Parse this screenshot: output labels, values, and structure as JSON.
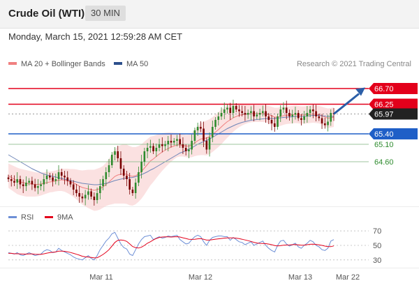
{
  "header": {
    "title": "Crude Oil (WTI)",
    "timeframe": "30 MIN"
  },
  "timestamp": "Monday, March 15, 2021 12:59:28 AM CET",
  "legend": {
    "ma20": {
      "label": "MA 20 + Bollinger Bands",
      "color": "#f08080"
    },
    "ma50": {
      "label": "MA 50",
      "color": "#2c4f8c"
    },
    "copyright": "Research © 2021 Trading Central"
  },
  "colors": {
    "resistance": "#e3001b",
    "support": "#1f5fc7",
    "target": "#2e8b2e",
    "current": "#222222",
    "bull": "#2e8b2e",
    "bear": "#7a0000",
    "band": "#f9d4d4",
    "arrow": "#2b5ea7",
    "rsi": "#6d8fd6",
    "rsi_ma": "#e3001b"
  },
  "chart_data": [
    {
      "type": "candlestick",
      "instrument": "Crude Oil (WTI)",
      "interval": "30 MIN",
      "ylim": [
        63.4,
        67.0
      ],
      "x_ticks": [
        "Mar 11",
        "Mar 12",
        "Mar 13",
        "Mar 22"
      ],
      "price_levels": [
        {
          "value": 66.7,
          "label": "66.70",
          "kind": "resistance"
        },
        {
          "value": 66.25,
          "label": "66.25",
          "kind": "resistance"
        },
        {
          "value": 65.97,
          "label": "65.97",
          "kind": "current"
        },
        {
          "value": 65.4,
          "label": "65.40",
          "kind": "support"
        },
        {
          "value": 65.1,
          "label": "65.10",
          "kind": "target"
        },
        {
          "value": 64.6,
          "label": "64.60",
          "kind": "target"
        }
      ],
      "close": [
        64.1,
        64.05,
        64.0,
        64.1,
        63.95,
        63.9,
        64.0,
        64.05,
        63.95,
        63.85,
        63.9,
        63.95,
        64.1,
        64.2,
        64.15,
        64.05,
        64.1,
        64.3,
        64.2,
        64.15,
        64.05,
        63.95,
        63.8,
        63.7,
        63.6,
        63.55,
        63.65,
        63.75,
        63.6,
        63.5,
        63.7,
        63.9,
        64.1,
        64.3,
        64.5,
        64.8,
        64.9,
        64.7,
        64.4,
        64.2,
        64.1,
        63.8,
        63.7,
        64.0,
        64.3,
        64.6,
        64.9,
        65.0,
        65.05,
        64.9,
        65.0,
        65.1,
        65.05,
        65.1,
        65.2,
        65.15,
        65.2,
        65.25,
        65.1,
        65.0,
        64.9,
        64.95,
        65.2,
        65.5,
        65.6,
        65.55,
        65.2,
        64.95,
        65.3,
        65.6,
        65.8,
        65.9,
        66.0,
        66.1,
        66.15,
        66.0,
        66.2,
        66.1,
        66.05,
        66.0,
        65.95,
        66.0,
        66.05,
        65.9,
        65.95,
        66.0,
        66.05,
        65.9,
        65.8,
        65.7,
        65.6,
        65.9,
        66.1,
        66.15,
        66.0,
        65.9,
        65.95,
        66.0,
        65.85,
        65.8,
        65.9,
        66.0,
        66.1,
        66.05,
        65.9,
        65.85,
        65.7,
        65.65,
        65.75,
        66.0,
        65.97
      ],
      "ma20": [
        64.2,
        64.15,
        64.1,
        64.05,
        64.02,
        64.0,
        63.98,
        63.97,
        63.96,
        63.95,
        63.95,
        63.96,
        63.98,
        64.0,
        64.02,
        64.03,
        64.05,
        64.07,
        64.08,
        64.07,
        64.05,
        64.02,
        63.99,
        63.95,
        63.9,
        63.86,
        63.84,
        63.82,
        63.8,
        63.78,
        63.8,
        63.83,
        63.88,
        63.95,
        64.02,
        64.1,
        64.18,
        64.22,
        64.24,
        64.25,
        64.24,
        64.2,
        64.18,
        64.2,
        64.25,
        64.32,
        64.42,
        64.52,
        64.62,
        64.68,
        64.75,
        64.82,
        64.88,
        64.93,
        64.98,
        65.02,
        65.05,
        65.08,
        65.08,
        65.07,
        65.05,
        65.05,
        65.08,
        65.14,
        65.2,
        65.25,
        65.27,
        65.28,
        65.32,
        65.38,
        65.45,
        65.52,
        65.6,
        65.68,
        65.75,
        65.8,
        65.86,
        65.9,
        65.93,
        65.95,
        65.96,
        65.97,
        65.98,
        65.98,
        65.98,
        65.98,
        65.98,
        65.97,
        65.95,
        65.92,
        65.88,
        65.88,
        65.9,
        65.92,
        65.93,
        65.94,
        65.95,
        65.96,
        65.95,
        65.94,
        65.94,
        65.95,
        65.96,
        65.97,
        65.96,
        65.95,
        65.92,
        65.88,
        65.85,
        65.86,
        65.88
      ],
      "ma50": [
        64.8,
        64.75,
        64.7,
        64.65,
        64.6,
        64.55,
        64.5,
        64.45,
        64.4,
        64.36,
        64.32,
        64.28,
        64.25,
        64.22,
        64.2,
        64.18,
        64.16,
        64.14,
        64.12,
        64.1,
        64.08,
        64.06,
        64.04,
        64.02,
        64.0,
        63.98,
        63.97,
        63.96,
        63.95,
        63.94,
        63.94,
        63.95,
        63.96,
        63.98,
        64.0,
        64.03,
        64.06,
        64.08,
        64.1,
        64.12,
        64.13,
        64.14,
        64.15,
        64.17,
        64.2,
        64.23,
        64.27,
        64.31,
        64.36,
        64.4,
        64.45,
        64.5,
        64.55,
        64.6,
        64.65,
        64.7,
        64.75,
        64.8,
        64.85,
        64.88,
        64.92,
        64.96,
        65.0,
        65.05,
        65.1,
        65.14,
        65.18,
        65.21,
        65.25,
        65.3,
        65.35,
        65.4,
        65.45,
        65.5,
        65.55,
        65.59,
        65.63,
        65.67,
        65.7,
        65.73,
        65.75,
        65.77,
        65.79,
        65.8,
        65.81,
        65.82,
        65.83,
        65.84,
        65.84,
        65.84,
        65.84,
        65.85,
        65.86,
        65.87,
        65.88,
        65.88,
        65.89,
        65.9,
        65.9,
        65.9,
        65.9,
        65.91,
        65.92,
        65.93,
        65.93,
        65.93,
        65.92,
        65.91,
        65.9,
        65.9,
        65.9
      ],
      "bb_width": [
        0.35,
        0.36,
        0.37,
        0.38,
        0.38,
        0.38,
        0.38,
        0.37,
        0.36,
        0.35,
        0.34,
        0.33,
        0.32,
        0.31,
        0.3,
        0.3,
        0.3,
        0.31,
        0.32,
        0.33,
        0.35,
        0.37,
        0.4,
        0.43,
        0.46,
        0.49,
        0.52,
        0.55,
        0.57,
        0.59,
        0.6,
        0.6,
        0.6,
        0.62,
        0.66,
        0.72,
        0.78,
        0.82,
        0.84,
        0.85,
        0.85,
        0.85,
        0.84,
        0.82,
        0.8,
        0.78,
        0.76,
        0.73,
        0.7,
        0.66,
        0.62,
        0.58,
        0.54,
        0.5,
        0.46,
        0.42,
        0.38,
        0.35,
        0.33,
        0.32,
        0.32,
        0.33,
        0.35,
        0.38,
        0.42,
        0.46,
        0.48,
        0.5,
        0.5,
        0.5,
        0.5,
        0.5,
        0.5,
        0.48,
        0.46,
        0.43,
        0.4,
        0.37,
        0.34,
        0.31,
        0.28,
        0.26,
        0.25,
        0.24,
        0.24,
        0.24,
        0.24,
        0.24,
        0.25,
        0.26,
        0.27,
        0.27,
        0.27,
        0.26,
        0.25,
        0.25,
        0.25,
        0.25,
        0.25,
        0.25,
        0.25,
        0.25,
        0.25,
        0.25,
        0.25,
        0.25,
        0.26,
        0.27,
        0.28,
        0.28,
        0.28
      ]
    },
    {
      "type": "line",
      "name": "RSI",
      "ylim": [
        25,
        75
      ],
      "y_ticks": [
        70,
        50,
        30
      ],
      "series": [
        {
          "name": "RSI",
          "values": [
            40,
            39,
            38,
            40,
            37,
            36,
            38,
            40,
            38,
            36,
            37,
            38,
            42,
            44,
            43,
            40,
            41,
            46,
            43,
            41,
            39,
            37,
            34,
            32,
            31,
            30,
            33,
            36,
            32,
            30,
            36,
            44,
            50,
            56,
            60,
            66,
            68,
            60,
            52,
            47,
            45,
            38,
            36,
            44,
            52,
            58,
            62,
            63,
            64,
            58,
            60,
            62,
            60,
            61,
            63,
            62,
            63,
            64,
            58,
            55,
            52,
            53,
            58,
            62,
            64,
            62,
            55,
            50,
            57,
            61,
            62,
            63,
            63,
            62,
            62,
            57,
            61,
            58,
            55,
            54,
            51,
            53,
            55,
            50,
            52,
            54,
            56,
            50,
            46,
            43,
            41,
            50,
            56,
            57,
            52,
            49,
            51,
            53,
            48,
            46,
            50,
            53,
            57,
            55,
            50,
            48,
            44,
            43,
            46,
            56,
            58
          ]
        },
        {
          "name": "9MA",
          "values": [
            39,
            39,
            38.5,
            38.5,
            38.3,
            38,
            38,
            38.3,
            38.2,
            37.8,
            37.6,
            37.6,
            38.4,
            39.3,
            40,
            40.5,
            41,
            42,
            42,
            41.8,
            41.2,
            40.2,
            39,
            37.8,
            36.5,
            35,
            34.2,
            33.8,
            33.5,
            32.8,
            33,
            35,
            37.5,
            40.5,
            44,
            49,
            54,
            57,
            57.5,
            57,
            55.5,
            52,
            48.5,
            46.8,
            46.3,
            47.5,
            50,
            53,
            55,
            57.5,
            59.5,
            61,
            61.5,
            61.8,
            61.8,
            61.5,
            61.8,
            62,
            61.5,
            60.5,
            59.5,
            58.5,
            58.3,
            58.5,
            59,
            59.3,
            58.5,
            57.3,
            57.3,
            58,
            58.6,
            59,
            59.5,
            60,
            60.4,
            60.3,
            60.4,
            60,
            59.3,
            58.5,
            57.5,
            56.5,
            55.5,
            54.2,
            53.3,
            52.8,
            52.6,
            52.4,
            51.8,
            51,
            49.8,
            49.2,
            49.6,
            50.2,
            50.5,
            50.6,
            51,
            51.2,
            50.8,
            50.3,
            50.4,
            51,
            51.5,
            51.6,
            51.3,
            50.8,
            50,
            49,
            48.3,
            48.3,
            49.3
          ]
        }
      ]
    }
  ],
  "rsi_legend": {
    "rsi": {
      "label": "RSI",
      "color": "#6d8fd6"
    },
    "ma9": {
      "label": "9MA",
      "color": "#e3001b"
    }
  }
}
